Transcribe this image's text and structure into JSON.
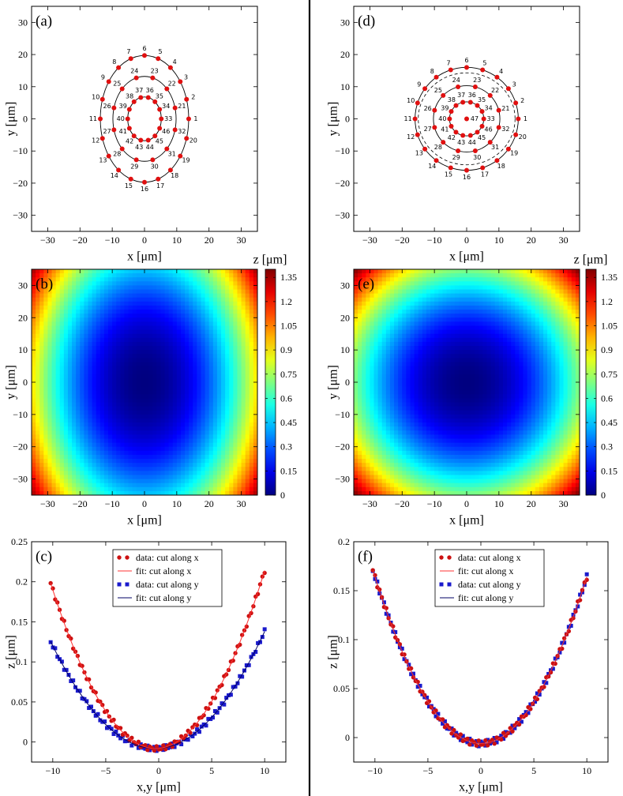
{
  "panel_labels": {
    "a": "(a)",
    "b": "(b)",
    "c": "(c)",
    "d": "(d)",
    "e": "(e)",
    "f": "(f)"
  },
  "axis_labels": {
    "x": "x [μm]",
    "y": "y [μm]",
    "z": "z [μm]",
    "xy": "x,y [μm]"
  },
  "legend": {
    "data_x": "data: cut along x",
    "fit_x": "fit: cut along x",
    "data_y": "data: cut along y",
    "fit_y": "fit: cut along y"
  },
  "colors": {
    "data_x": "#cc1111",
    "fit_x": "#ff3333",
    "data_y": "#1a1acc",
    "fit_y": "#000066",
    "electrode": "#e01010"
  },
  "colormap": "jet",
  "chart_data": [
    {
      "id": "a",
      "type": "scatter",
      "xlabel": "x [μm]",
      "ylabel": "y [μm]",
      "xlim": [
        -35,
        35
      ],
      "ylim": [
        -35,
        35
      ],
      "xticks": [
        -30,
        -20,
        -10,
        0,
        10,
        20,
        30
      ],
      "yticks": [
        -30,
        -20,
        -10,
        0,
        10,
        20,
        30
      ],
      "rings": [
        {
          "rx": 13.7,
          "ry": 19.7,
          "style": "solid",
          "count": 20,
          "start": 1
        },
        {
          "rx": 9.8,
          "ry": 13.2,
          "style": "solid",
          "count": 12,
          "start": 21
        },
        {
          "rx": 5.2,
          "ry": 6.8,
          "style": "solid",
          "count": 14,
          "start": 33
        }
      ],
      "center_point": false
    },
    {
      "id": "b",
      "type": "heatmap",
      "xlabel": "x [μm]",
      "ylabel": "y [μm]",
      "zlabel": "z [μm]",
      "xlim": [
        -35,
        35
      ],
      "ylim": [
        -35,
        35
      ],
      "xticks": [
        -30,
        -20,
        -10,
        0,
        10,
        20,
        30
      ],
      "yticks": [
        -30,
        -20,
        -10,
        0,
        10,
        20,
        30
      ],
      "zlim": [
        0,
        1.4
      ],
      "cbar_ticks": [
        "0",
        "0.15",
        "0.3",
        "0.45",
        "0.6",
        "0.75",
        "0.9",
        "1.05",
        "1.2",
        "1.35"
      ],
      "model": {
        "form": "ax*x^2 + ay*y^2",
        "ax": 0.00075,
        "ay": 0.00037
      }
    },
    {
      "id": "c",
      "type": "scatter",
      "xlabel": "x,y [μm]",
      "ylabel": "z [μm]",
      "xlim": [
        -12,
        12
      ],
      "ylim": [
        -0.025,
        0.25
      ],
      "xticks": [
        -10,
        -5,
        0,
        5,
        10
      ],
      "yticks": [
        "0",
        "0.05",
        "0.1",
        "0.15",
        "0.2",
        "0.25"
      ],
      "series": [
        {
          "name": "data: cut along x",
          "kind": "points",
          "marker": "circle",
          "a": 0.0021,
          "b": 0.0012,
          "c": -0.008,
          "x": [
            -10.2,
            10
          ]
        },
        {
          "name": "fit: cut along x",
          "kind": "line",
          "a": 0.0021,
          "b": 0.0012,
          "c": -0.008,
          "x": [
            -10.2,
            10
          ]
        },
        {
          "name": "data: cut along y",
          "kind": "points",
          "marker": "square",
          "a": 0.00137,
          "b": 0.0009,
          "c": -0.008,
          "x": [
            -10.2,
            10
          ]
        },
        {
          "name": "fit: cut along y",
          "kind": "line",
          "a": 0.00137,
          "b": 0.0009,
          "c": -0.008,
          "x": [
            -10.2,
            10
          ]
        }
      ]
    },
    {
      "id": "d",
      "type": "scatter",
      "xlabel": "x [μm]",
      "ylabel": "y [μm]",
      "xlim": [
        -35,
        35
      ],
      "ylim": [
        -35,
        35
      ],
      "xticks": [
        -30,
        -20,
        -10,
        0,
        10,
        20,
        30
      ],
      "yticks": [
        -30,
        -20,
        -10,
        0,
        10,
        20,
        30
      ],
      "rings": [
        {
          "rx": 16,
          "ry": 16,
          "style": "solid",
          "count": 20,
          "start": 1
        },
        {
          "rx": 10.3,
          "ry": 10.3,
          "style": "solid",
          "count": 12,
          "start": 21
        },
        {
          "rx": 5.3,
          "ry": 5.3,
          "style": "solid",
          "count": 14,
          "start": 33
        }
      ],
      "dashed_ring": {
        "rx": 15,
        "ry": 14.3
      },
      "center_point": true,
      "center_label": "47"
    },
    {
      "id": "e",
      "type": "heatmap",
      "xlabel": "x [μm]",
      "ylabel": "y [μm]",
      "zlabel": "z [μm]",
      "xlim": [
        -35,
        35
      ],
      "ylim": [
        -35,
        35
      ],
      "xticks": [
        -30,
        -20,
        -10,
        0,
        10,
        20,
        30
      ],
      "yticks": [
        -30,
        -20,
        -10,
        0,
        10,
        20,
        30
      ],
      "zlim": [
        0,
        1.4
      ],
      "cbar_ticks": [
        "0",
        "0.15",
        "0.3",
        "0.45",
        "0.6",
        "0.75",
        "0.9",
        "1.05",
        "1.2",
        "1.35"
      ],
      "model": {
        "form": "a*(x^2 + y^2)",
        "ax": 0.00058,
        "ay": 0.00058
      }
    },
    {
      "id": "f",
      "type": "scatter",
      "xlabel": "x,y [μm]",
      "ylabel": "z [μm]",
      "xlim": [
        -12,
        12
      ],
      "ylim": [
        -0.025,
        0.2
      ],
      "xticks": [
        -10,
        -5,
        0,
        5,
        10
      ],
      "yticks": [
        "0",
        "0.05",
        "0.1",
        "0.15",
        "0.2"
      ],
      "series": [
        {
          "name": "data: cut along x",
          "kind": "points",
          "marker": "circle",
          "a": 0.0017,
          "b": 0,
          "c": -0.006,
          "x": [
            -10.2,
            10
          ]
        },
        {
          "name": "fit: cut along x",
          "kind": "line",
          "a": 0.0017,
          "b": 0,
          "c": -0.006,
          "x": [
            -10.2,
            10
          ]
        },
        {
          "name": "data: cut along y",
          "kind": "points",
          "marker": "square",
          "a": 0.0017,
          "b": 0,
          "c": -0.006,
          "x": [
            -10.2,
            10
          ]
        },
        {
          "name": "fit: cut along y",
          "kind": "line",
          "a": 0.0017,
          "b": 0,
          "c": -0.006,
          "x": [
            -10.2,
            10
          ]
        }
      ]
    }
  ]
}
